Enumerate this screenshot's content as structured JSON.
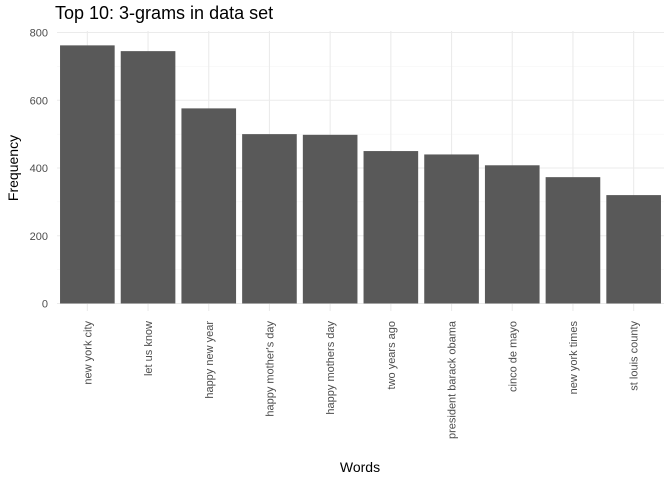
{
  "chart_data": {
    "type": "bar",
    "title": "Top 10: 3-grams in data set",
    "xlabel": "Words",
    "ylabel": "Frequency",
    "categories": [
      "new york city",
      "let us know",
      "happy new year",
      "happy mother's day",
      "happy mothers day",
      "two years ago",
      "president barack obama",
      "cinco de mayo",
      "new york times",
      "st louis county"
    ],
    "values": [
      762,
      745,
      576,
      500,
      498,
      450,
      440,
      408,
      373,
      320
    ],
    "ylim": [
      0,
      800
    ],
    "yticks": [
      0,
      200,
      400,
      600,
      800
    ],
    "bar_color": "#595959",
    "grid": true,
    "legend": "none"
  }
}
